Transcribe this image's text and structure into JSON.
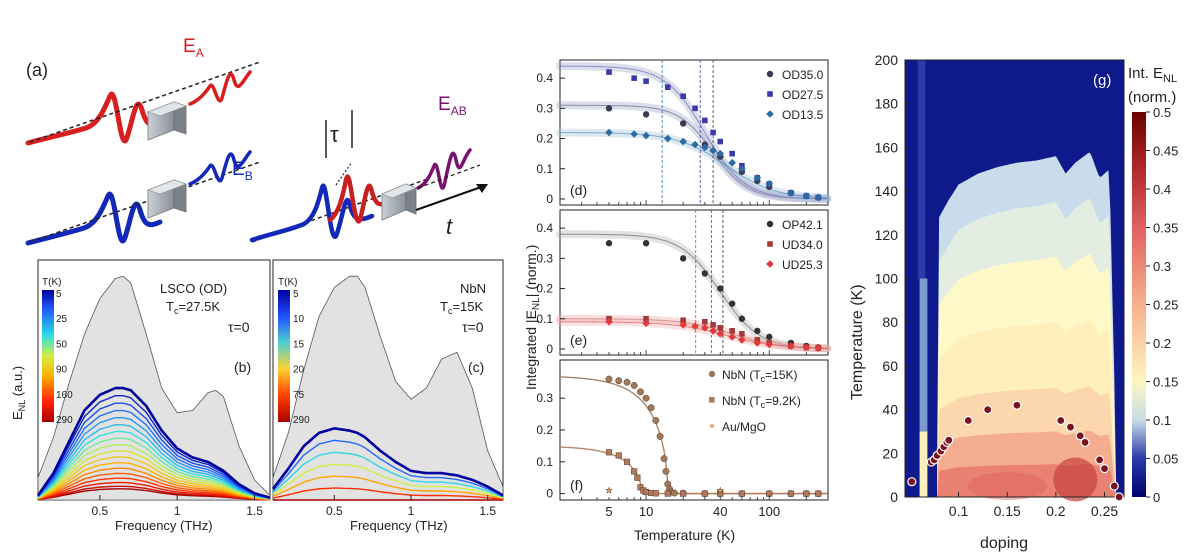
{
  "colors": {
    "red": "#d81e1e",
    "blue": "#1228b8",
    "purple": "#7a1070",
    "pulse_dark": "#222222"
  },
  "panel_a": {
    "label": "(a)",
    "field_a": "E",
    "field_a_sub": "A",
    "field_b": "E",
    "field_b_sub": "B",
    "field_ab": "E",
    "field_ab_sub": "AB",
    "delay": "τ",
    "time": "t"
  },
  "panel_b": {
    "label": "(b)",
    "material": "LSCO (OD)",
    "tc_text": "T",
    "tc_sub": "c",
    "tc_value": "=27.5K",
    "tau": "τ=0",
    "cb_title": "T(K)",
    "cb_ticks": [
      "5",
      "25",
      "50",
      "90",
      "160",
      "290"
    ],
    "ylabel": "E",
    "ylabel_sub": "NL",
    "ylabel_unit": " (a.u.)",
    "xlabel": "Frequency (THz)",
    "xticks": [
      0.5,
      1.0,
      1.5
    ],
    "curve_count": 18
  },
  "panel_c": {
    "label": "(c)",
    "material": "NbN",
    "tc_text": "T",
    "tc_sub": "c",
    "tc_value": "=15K",
    "tau": "τ=0",
    "cb_title": "T(K)",
    "cb_ticks": [
      "5",
      "10",
      "15",
      "20",
      "75",
      "290"
    ],
    "xlabel": "Frequency (THz)",
    "xticks": [
      0.5,
      1.0,
      1.5
    ],
    "curve_count": 7
  },
  "panel_def": {
    "ylabel_pre": "Integrated |E",
    "ylabel_sub": "NL",
    "ylabel_post": "| (norm.)",
    "xlabel": "Temperature (K)",
    "xticks": [
      "5",
      "10",
      "40",
      "100"
    ]
  },
  "panel_g": {
    "label": "(g)",
    "cb_title": "Int. E",
    "cb_title_sub": "NL",
    "cb_title2": "(norm.)",
    "cb_ticks": [
      "0.5",
      "0.45",
      "0.4",
      "0.35",
      "0.3",
      "0.25",
      "0.2",
      "0.15",
      "0.1",
      "0.05",
      "0"
    ]
  },
  "chart_data": [
    {
      "type": "line",
      "id": "b",
      "title": "LSCO (OD), Tc=27.5K, τ=0",
      "xlabel": "Frequency (THz)",
      "ylabel": "E_NL (a.u.)",
      "xlim": [
        0.1,
        1.6
      ],
      "ylim": [
        0,
        1.05
      ],
      "x": [
        0.1,
        0.2,
        0.3,
        0.4,
        0.5,
        0.6,
        0.65,
        0.7,
        0.8,
        0.9,
        1.0,
        1.1,
        1.2,
        1.25,
        1.3,
        1.4,
        1.5,
        1.6
      ],
      "envelope": [
        0.1,
        0.28,
        0.52,
        0.74,
        0.9,
        0.99,
        1.0,
        0.97,
        0.74,
        0.5,
        0.39,
        0.4,
        0.48,
        0.49,
        0.46,
        0.24,
        0.09,
        0.02
      ],
      "max_curve": [
        0.02,
        0.12,
        0.26,
        0.4,
        0.47,
        0.5,
        0.5,
        0.49,
        0.42,
        0.31,
        0.23,
        0.19,
        0.17,
        0.15,
        0.13,
        0.07,
        0.03,
        0.01
      ],
      "temperatures": [
        5,
        10,
        15,
        20,
        25,
        30,
        35,
        40,
        50,
        60,
        70,
        90,
        110,
        130,
        160,
        200,
        250,
        290
      ]
    },
    {
      "type": "line",
      "id": "c",
      "title": "NbN, Tc=15K, τ=0",
      "xlabel": "Frequency (THz)",
      "xlim": [
        0.1,
        1.6
      ],
      "ylim": [
        0,
        1.05
      ],
      "x": [
        0.1,
        0.2,
        0.3,
        0.4,
        0.5,
        0.6,
        0.65,
        0.7,
        0.8,
        0.9,
        1.0,
        1.1,
        1.2,
        1.3,
        1.4,
        1.5,
        1.6
      ],
      "envelope": [
        0.1,
        0.3,
        0.58,
        0.82,
        0.95,
        1.0,
        1.0,
        0.95,
        0.73,
        0.53,
        0.45,
        0.5,
        0.63,
        0.66,
        0.5,
        0.22,
        0.06
      ],
      "max_curve": [
        0.05,
        0.14,
        0.24,
        0.3,
        0.32,
        0.31,
        0.3,
        0.28,
        0.22,
        0.17,
        0.13,
        0.12,
        0.12,
        0.11,
        0.09,
        0.06,
        0.02
      ],
      "temperatures": [
        5,
        8,
        10,
        12,
        13,
        14,
        15
      ]
    },
    {
      "type": "scatter",
      "id": "d",
      "xscale": "log",
      "xlim": [
        2,
        300
      ],
      "ylim": [
        -0.02,
        0.46
      ],
      "yticks": [
        0,
        0.1,
        0.2,
        0.3,
        0.4
      ],
      "series": [
        {
          "name": "OD35.0",
          "marker": "circle",
          "color": "#3a3a55",
          "x": [
            5,
            10,
            20,
            30,
            40,
            60,
            80,
            100,
            150,
            200,
            250
          ],
          "y": [
            0.3,
            0.28,
            0.25,
            0.18,
            0.14,
            0.09,
            0.06,
            0.04,
            0.02,
            0.01,
            0.005
          ],
          "fit_start": 0.31,
          "fit_mid": 35,
          "fit_w": 0.14,
          "tc": 35.0
        },
        {
          "name": "OD27.5",
          "marker": "square",
          "color": "#3a3aaa",
          "x": [
            5,
            8,
            10,
            15,
            20,
            25,
            30,
            35,
            40,
            50,
            60,
            80,
            100,
            150,
            200,
            250
          ],
          "y": [
            0.42,
            0.4,
            0.39,
            0.37,
            0.34,
            0.3,
            0.26,
            0.22,
            0.19,
            0.15,
            0.11,
            0.07,
            0.05,
            0.02,
            0.01,
            0.005
          ],
          "fit_start": 0.44,
          "fit_mid": 30,
          "fit_w": 0.16,
          "tc": 27.5
        },
        {
          "name": "OD13.5",
          "marker": "diamond",
          "color": "#2d6aa3",
          "x": [
            5,
            8,
            10,
            15,
            20,
            25,
            30,
            35,
            40,
            50,
            60,
            80,
            100,
            150,
            200,
            250
          ],
          "y": [
            0.22,
            0.215,
            0.21,
            0.2,
            0.19,
            0.18,
            0.17,
            0.16,
            0.15,
            0.12,
            0.1,
            0.07,
            0.05,
            0.02,
            0.01,
            0.005
          ],
          "fit_start": 0.22,
          "fit_mid": 45,
          "fit_w": 0.2,
          "tc": 13.5
        }
      ]
    },
    {
      "type": "scatter",
      "id": "e",
      "xscale": "log",
      "xlim": [
        2,
        300
      ],
      "ylim": [
        -0.02,
        0.46
      ],
      "yticks": [
        0,
        0.1,
        0.2,
        0.3,
        0.4
      ],
      "series": [
        {
          "name": "OP42.1",
          "marker": "circle",
          "color": "#333333",
          "x": [
            5,
            10,
            20,
            30,
            40,
            50,
            60,
            80,
            100,
            150,
            200,
            250
          ],
          "y": [
            0.35,
            0.35,
            0.3,
            0.25,
            0.2,
            0.15,
            0.1,
            0.06,
            0.04,
            0.02,
            0.01,
            0.005
          ],
          "fit_start": 0.38,
          "fit_mid": 40,
          "fit_w": 0.16,
          "tc": 42.1
        },
        {
          "name": "UD34.0",
          "marker": "square",
          "color": "#a23a3a",
          "x": [
            5,
            10,
            20,
            30,
            35,
            40,
            50,
            60,
            80,
            100,
            150,
            200,
            250
          ],
          "y": [
            0.1,
            0.1,
            0.095,
            0.09,
            0.08,
            0.07,
            0.06,
            0.05,
            0.03,
            0.02,
            0.01,
            0.005,
            0.003
          ],
          "fit_start": 0.1,
          "fit_mid": 50,
          "fit_w": 0.2,
          "tc": 34.0
        },
        {
          "name": "UD25.3",
          "marker": "diamond",
          "color": "#e03a3a",
          "x": [
            5,
            10,
            20,
            25,
            30,
            35,
            40,
            50,
            60,
            80,
            100,
            150,
            200,
            250
          ],
          "y": [
            0.09,
            0.085,
            0.08,
            0.075,
            0.07,
            0.06,
            0.05,
            0.04,
            0.03,
            0.02,
            0.015,
            0.01,
            0.005,
            0.003
          ],
          "fit_start": 0.09,
          "fit_mid": 45,
          "fit_w": 0.22,
          "tc": 25.3
        }
      ]
    },
    {
      "type": "scatter",
      "id": "f",
      "xscale": "log",
      "xlim": [
        2,
        300
      ],
      "ylim": [
        -0.02,
        0.42
      ],
      "yticks": [
        0,
        0.1,
        0.2,
        0.3
      ],
      "series": [
        {
          "name": "NbN (Tc=15K)",
          "name_pre": "NbN (T",
          "name_sub": "c",
          "name_post": "=15K)",
          "marker": "circle",
          "color": "#a0785a",
          "x": [
            5,
            6,
            7,
            8,
            9,
            10,
            11,
            12,
            13,
            14,
            14.5,
            15,
            15.5,
            16,
            17,
            20,
            30,
            40,
            60,
            100,
            150,
            200,
            250
          ],
          "y": [
            0.36,
            0.355,
            0.35,
            0.34,
            0.32,
            0.3,
            0.27,
            0.23,
            0.18,
            0.11,
            0.07,
            0.03,
            0.015,
            0.005,
            0.002,
            0.001,
            0,
            0,
            0,
            0,
            0,
            0,
            0
          ],
          "fit_tc": 15,
          "fit_start": 0.37
        },
        {
          "name": "NbN (Tc=9.2K)",
          "name_pre": "NbN (T",
          "name_sub": "c",
          "name_post": "=9.2K)",
          "marker": "square",
          "color": "#b07a5a",
          "x": [
            5,
            6,
            7,
            8,
            8.5,
            9,
            9.5,
            10,
            11,
            12,
            15,
            20,
            30,
            40,
            60,
            100,
            150,
            200,
            250
          ],
          "y": [
            0.13,
            0.12,
            0.1,
            0.07,
            0.05,
            0.02,
            0.01,
            0.005,
            0.002,
            0.001,
            0,
            0,
            0,
            0,
            0,
            0,
            0,
            0,
            0
          ],
          "fit_tc": 9.2,
          "fit_start": 0.15
        },
        {
          "name": "Au/MgO",
          "marker": "star",
          "color": "#e8a060",
          "x": [
            5,
            40
          ],
          "y": [
            0.01,
            0.01
          ]
        }
      ]
    },
    {
      "type": "heatmap",
      "id": "g",
      "xlabel": "doping",
      "ylabel": "Temperature (K)",
      "xlim": [
        0.045,
        0.27
      ],
      "ylim": [
        0,
        200
      ],
      "xticks": [
        0.1,
        0.15,
        0.2,
        0.25
      ],
      "xtick_labels": [
        "0.1",
        "0.15",
        "0.2",
        "0.25"
      ],
      "yticks": [
        0,
        20,
        40,
        60,
        80,
        100,
        120,
        140,
        160,
        180,
        200
      ],
      "colorbar_range": [
        0,
        0.5
      ],
      "tc_points": [
        [
          0.052,
          7
        ],
        [
          0.072,
          16
        ],
        [
          0.075,
          17
        ],
        [
          0.078,
          19
        ],
        [
          0.082,
          21
        ],
        [
          0.085,
          23
        ],
        [
          0.088,
          25
        ],
        [
          0.09,
          26
        ],
        [
          0.11,
          35
        ],
        [
          0.13,
          40
        ],
        [
          0.16,
          42
        ],
        [
          0.205,
          35
        ],
        [
          0.215,
          32
        ],
        [
          0.225,
          28
        ],
        [
          0.23,
          25
        ],
        [
          0.245,
          17
        ],
        [
          0.25,
          13
        ],
        [
          0.26,
          5
        ],
        [
          0.265,
          0
        ]
      ]
    }
  ]
}
